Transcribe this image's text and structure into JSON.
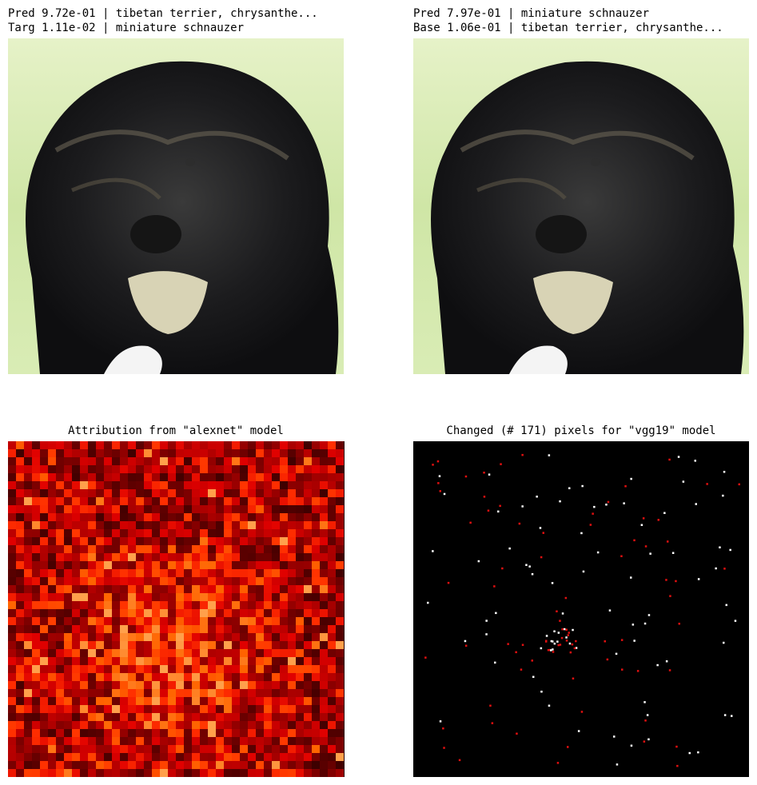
{
  "panels": [
    {
      "title_lines": [
        "Pred 9.72e-01 | tibetan terrier, chrysanthe...",
        "Targ 1.11e-02 | miniature schnauzer"
      ]
    },
    {
      "title_lines": [
        "Pred 7.97e-01 | miniature schnauzer",
        "Base 1.06e-01 | tibetan terrier, chrysanthe..."
      ]
    },
    {
      "title_lines": [
        "Attribution from \"alexnet\" model"
      ]
    },
    {
      "title_lines": [
        "Changed (# 171) pixels for \"vgg19\" model"
      ]
    }
  ]
}
